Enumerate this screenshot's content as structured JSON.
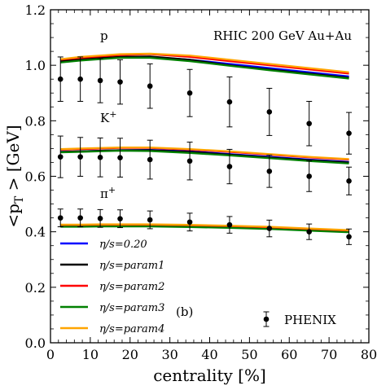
{
  "chart_data": {
    "type": "line",
    "xlabel": "centrality [%]",
    "ylabel": "<p_T > [GeV]",
    "xlim": [
      0,
      80
    ],
    "ylim": [
      0,
      1.2
    ],
    "xticks": [
      0,
      10,
      20,
      30,
      40,
      50,
      60,
      70,
      80
    ],
    "xtick_labels": [
      "0",
      "10",
      "20",
      "30",
      "40",
      "50",
      "60",
      "70",
      "80"
    ],
    "yticks": [
      0.0,
      0.2,
      0.4,
      0.6,
      0.8,
      1.0,
      1.2
    ],
    "ytick_labels": [
      "0.0",
      "0.2",
      "0.4",
      "0.6",
      "0.8",
      "1.0",
      "1.2"
    ],
    "grid": false,
    "legend_position": "bottom-left",
    "annotations": {
      "system": "RHIC 200 GeV Au+Au",
      "panel": "(b)",
      "label_p": "p",
      "label_kaon": "K",
      "label_kaon_sup": "+",
      "label_pion": "π",
      "label_pion_sup": "+"
    },
    "x": [
      2.5,
      7.5,
      12.5,
      17.5,
      25,
      35,
      45,
      55,
      65,
      75
    ],
    "series": [
      {
        "name": "η/s=0.20",
        "color": "#0000ff",
        "proton": [
          1.015,
          1.02,
          1.025,
          1.03,
          1.03,
          1.02,
          1.005,
          0.99,
          0.975,
          0.96
        ],
        "kaon": [
          0.688,
          0.69,
          0.692,
          0.694,
          0.695,
          0.69,
          0.68,
          0.67,
          0.66,
          0.652
        ],
        "pion": [
          0.42,
          0.42,
          0.421,
          0.421,
          0.421,
          0.42,
          0.418,
          0.414,
          0.408,
          0.402
        ]
      },
      {
        "name": "η/s=param1",
        "color": "#000000",
        "proton": [
          1.015,
          1.022,
          1.027,
          1.03,
          1.032,
          1.02,
          1.0,
          0.985,
          0.97,
          0.955
        ],
        "kaon": [
          0.688,
          0.69,
          0.692,
          0.694,
          0.694,
          0.688,
          0.678,
          0.668,
          0.658,
          0.65
        ],
        "pion": [
          0.42,
          0.42,
          0.421,
          0.421,
          0.421,
          0.419,
          0.416,
          0.412,
          0.406,
          0.4
        ]
      },
      {
        "name": "η/s=param2",
        "color": "#ff0000",
        "proton": [
          1.02,
          1.027,
          1.032,
          1.037,
          1.04,
          1.03,
          1.015,
          1.0,
          0.985,
          0.97
        ],
        "kaon": [
          0.696,
          0.698,
          0.7,
          0.702,
          0.702,
          0.696,
          0.688,
          0.678,
          0.668,
          0.66
        ],
        "pion": [
          0.424,
          0.424,
          0.425,
          0.425,
          0.425,
          0.423,
          0.42,
          0.416,
          0.41,
          0.404
        ]
      },
      {
        "name": "η/s=param3",
        "color": "#008000",
        "proton": [
          1.01,
          1.017,
          1.022,
          1.027,
          1.027,
          1.015,
          0.998,
          0.982,
          0.967,
          0.952
        ],
        "kaon": [
          0.686,
          0.688,
          0.69,
          0.692,
          0.691,
          0.684,
          0.675,
          0.665,
          0.655,
          0.646
        ],
        "pion": [
          0.418,
          0.418,
          0.419,
          0.419,
          0.419,
          0.417,
          0.414,
          0.41,
          0.404,
          0.398
        ]
      },
      {
        "name": "η/s=param4",
        "color": "#ffa500",
        "proton": [
          1.022,
          1.03,
          1.035,
          1.04,
          1.042,
          1.035,
          1.02,
          1.005,
          0.99,
          0.975
        ],
        "kaon": [
          0.698,
          0.7,
          0.702,
          0.704,
          0.704,
          0.698,
          0.69,
          0.68,
          0.67,
          0.662
        ],
        "pion": [
          0.426,
          0.426,
          0.427,
          0.427,
          0.427,
          0.425,
          0.422,
          0.418,
          0.412,
          0.406
        ]
      }
    ],
    "data_points": {
      "name": "PHENIX",
      "proton": {
        "y": [
          0.95,
          0.95,
          0.945,
          0.94,
          0.925,
          0.9,
          0.868,
          0.832,
          0.79,
          0.755
        ],
        "err": [
          0.08,
          0.08,
          0.08,
          0.08,
          0.08,
          0.085,
          0.09,
          0.085,
          0.08,
          0.075
        ]
      },
      "kaon": {
        "y": [
          0.67,
          0.67,
          0.668,
          0.667,
          0.66,
          0.655,
          0.635,
          0.618,
          0.6,
          0.583
        ],
        "err": [
          0.075,
          0.07,
          0.07,
          0.07,
          0.07,
          0.068,
          0.062,
          0.058,
          0.055,
          0.05
        ]
      },
      "pion": {
        "y": [
          0.45,
          0.45,
          0.448,
          0.447,
          0.443,
          0.435,
          0.425,
          0.412,
          0.4,
          0.382
        ],
        "err": [
          0.032,
          0.032,
          0.032,
          0.032,
          0.032,
          0.032,
          0.03,
          0.03,
          0.028,
          0.028
        ]
      }
    }
  }
}
